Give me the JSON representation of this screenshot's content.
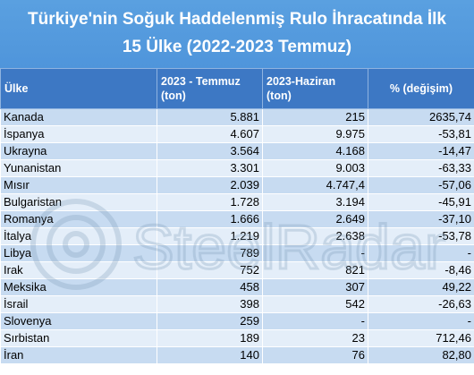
{
  "title": {
    "line1": "Türkiye'nin Soğuk Haddelenmiş Rulo İhracatında İlk",
    "line2": "15 Ülke (2022-2023 Temmuz)"
  },
  "table": {
    "headers": {
      "country": "Ülke",
      "col2_line1": "2023 - Temmuz",
      "col2_line2": "(ton)",
      "col3_line1": "2023-Haziran",
      "col3_line2": "(ton)",
      "pct": "% (değişim)"
    },
    "rows": [
      {
        "country": "Kanada",
        "july": "5.881",
        "june": "215",
        "change": "2635,74"
      },
      {
        "country": "İspanya",
        "july": "4.607",
        "june": "9.975",
        "change": "-53,81"
      },
      {
        "country": "Ukrayna",
        "july": "3.564",
        "june": "4.168",
        "change": "-14,47"
      },
      {
        "country": "Yunanistan",
        "july": "3.301",
        "june": "9.003",
        "change": "-63,33"
      },
      {
        "country": "Mısır",
        "july": "2.039",
        "june": "4.747,4",
        "change": "-57,06"
      },
      {
        "country": "Bulgaristan",
        "july": "1.728",
        "june": "3.194",
        "change": "-45,91"
      },
      {
        "country": "Romanya",
        "july": "1.666",
        "june": "2.649",
        "change": "-37,10"
      },
      {
        "country": "İtalya",
        "july": "1.219",
        "june": "2.638",
        "change": "-53,78"
      },
      {
        "country": "Libya",
        "july": "789",
        "june": "-",
        "change": "-"
      },
      {
        "country": "Irak",
        "july": "752",
        "june": "821",
        "change": "-8,46"
      },
      {
        "country": "Meksika",
        "july": "458",
        "june": "307",
        "change": "49,22"
      },
      {
        "country": "İsrail",
        "july": "398",
        "june": "542",
        "change": "-26,63"
      },
      {
        "country": "Slovenya",
        "july": "259",
        "june": "-",
        "change": "-"
      },
      {
        "country": "Sırbistan",
        "july": "189",
        "june": "23",
        "change": "712,46"
      },
      {
        "country": "İran",
        "july": "140",
        "june": "76",
        "change": "82,80"
      }
    ]
  },
  "watermark": {
    "text": "SteelRadar",
    "color": "#7a9ab8"
  }
}
